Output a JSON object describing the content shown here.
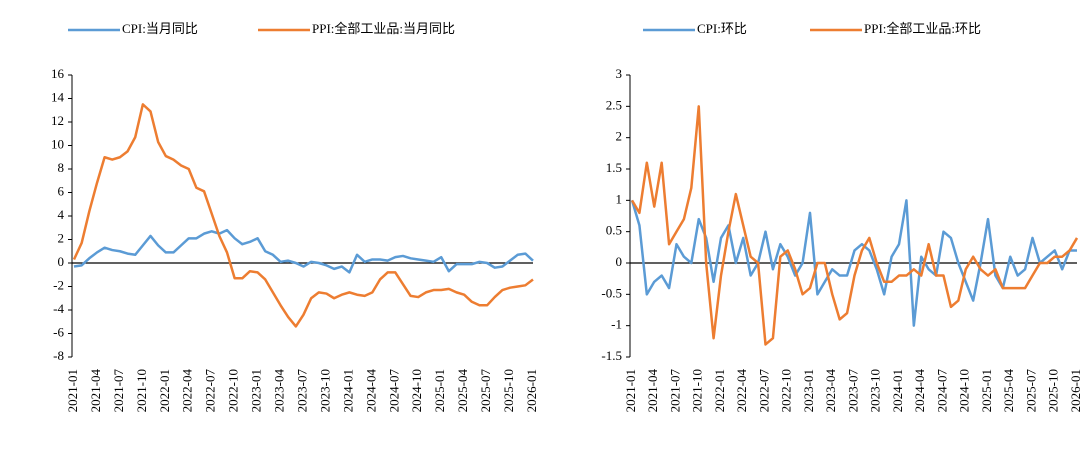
{
  "chart_data": [
    {
      "type": "line",
      "categories": [
        "2021-01",
        null,
        null,
        "2021-04",
        null,
        null,
        "2021-07",
        null,
        null,
        "2021-10",
        null,
        null,
        "2022-01",
        null,
        null,
        "2022-04",
        null,
        null,
        "2022-07",
        null,
        null,
        "2022-10",
        null,
        null,
        "2023-01",
        null,
        null,
        "2023-04",
        null,
        null,
        "2023-07",
        null,
        null,
        "2023-10",
        null,
        null,
        "2024-01",
        null,
        null,
        "2024-04",
        null,
        null,
        "2024-07",
        null,
        null,
        "2024-10",
        null,
        null,
        "2025-01",
        null,
        null,
        "2025-04",
        null,
        null,
        "2025-07",
        null,
        null,
        "2025-10",
        null,
        null,
        "2026-01"
      ],
      "series": [
        {
          "name": "CPI:当月同比",
          "color": "#5b9bd5",
          "values": [
            -0.3,
            -0.2,
            0.4,
            0.9,
            1.3,
            1.1,
            1.0,
            0.8,
            0.7,
            1.5,
            2.3,
            1.5,
            0.9,
            0.9,
            1.5,
            2.1,
            2.1,
            2.5,
            2.7,
            2.5,
            2.8,
            2.1,
            1.6,
            1.8,
            2.1,
            1.0,
            0.7,
            0.1,
            0.2,
            0.0,
            -0.3,
            0.1,
            0.0,
            -0.2,
            -0.5,
            -0.3,
            -0.8,
            0.7,
            0.1,
            0.3,
            0.3,
            0.2,
            0.5,
            0.6,
            0.4,
            0.3,
            0.2,
            0.1,
            0.5,
            -0.7,
            -0.1,
            -0.1,
            -0.1,
            0.1,
            0.0,
            -0.4,
            -0.3,
            0.2,
            0.7,
            0.8,
            0.2
          ]
        },
        {
          "name": "PPI:全部工业品:当月同比",
          "color": "#ed7d31",
          "values": [
            0.3,
            1.7,
            4.4,
            6.8,
            9.0,
            8.8,
            9.0,
            9.5,
            10.7,
            13.5,
            12.9,
            10.3,
            9.1,
            8.8,
            8.3,
            8.0,
            6.4,
            6.1,
            4.2,
            2.3,
            0.9,
            -1.3,
            -1.3,
            -0.7,
            -0.8,
            -1.4,
            -2.5,
            -3.6,
            -4.6,
            -5.4,
            -4.4,
            -3.0,
            -2.5,
            -2.6,
            -3.0,
            -2.7,
            -2.5,
            -2.7,
            -2.8,
            -2.5,
            -1.4,
            -0.8,
            -0.8,
            -1.8,
            -2.8,
            -2.9,
            -2.5,
            -2.3,
            -2.3,
            -2.2,
            -2.5,
            -2.7,
            -3.3,
            -3.6,
            -3.6,
            -2.9,
            -2.3,
            -2.1,
            -2.0,
            -1.9,
            -1.4
          ]
        }
      ],
      "ylim": [
        -8,
        16
      ],
      "yticks": [
        -8,
        -6,
        -4,
        -2,
        0,
        2,
        4,
        6,
        8,
        10,
        12,
        14,
        16
      ]
    },
    {
      "type": "line",
      "categories": [
        "2021-01",
        null,
        null,
        "2021-04",
        null,
        null,
        "2021-07",
        null,
        null,
        "2021-10",
        null,
        null,
        "2022-01",
        null,
        null,
        "2022-04",
        null,
        null,
        "2022-07",
        null,
        null,
        "2022-10",
        null,
        null,
        "2023-01",
        null,
        null,
        "2023-04",
        null,
        null,
        "2023-07",
        null,
        null,
        "2023-10",
        null,
        null,
        "2024-01",
        null,
        null,
        "2024-04",
        null,
        null,
        "2024-07",
        null,
        null,
        "2024-10",
        null,
        null,
        "2025-01",
        null,
        null,
        "2025-04",
        null,
        null,
        "2025-07",
        null,
        null,
        "2025-10",
        null,
        null,
        "2026-01"
      ],
      "series": [
        {
          "name": "CPI:环比",
          "color": "#5b9bd5",
          "values": [
            1.0,
            0.6,
            -0.5,
            -0.3,
            -0.2,
            -0.4,
            0.3,
            0.1,
            0.0,
            0.7,
            0.4,
            -0.3,
            0.4,
            0.6,
            0.0,
            0.4,
            -0.2,
            0.0,
            0.5,
            -0.1,
            0.3,
            0.1,
            -0.2,
            0.0,
            0.8,
            -0.5,
            -0.3,
            -0.1,
            -0.2,
            -0.2,
            0.2,
            0.3,
            0.2,
            -0.1,
            -0.5,
            0.1,
            0.3,
            1.0,
            -1.0,
            0.1,
            -0.1,
            -0.2,
            0.5,
            0.4,
            0.0,
            -0.3,
            -0.6,
            0.0,
            0.7,
            -0.2,
            -0.4,
            0.1,
            -0.2,
            -0.1,
            0.4,
            0.0,
            0.1,
            0.2,
            -0.1,
            0.2,
            0.2
          ]
        },
        {
          "name": "PPI:全部工业品:环比",
          "color": "#ed7d31",
          "values": [
            1.0,
            0.8,
            1.6,
            0.9,
            1.6,
            0.3,
            0.5,
            0.7,
            1.2,
            2.5,
            0.0,
            -1.2,
            -0.2,
            0.5,
            1.1,
            0.6,
            0.1,
            0.0,
            -1.3,
            -1.2,
            0.1,
            0.2,
            -0.1,
            -0.5,
            -0.4,
            0.0,
            0.0,
            -0.5,
            -0.9,
            -0.8,
            -0.2,
            0.2,
            0.4,
            0.0,
            -0.3,
            -0.3,
            -0.2,
            -0.2,
            -0.1,
            -0.2,
            0.3,
            -0.2,
            -0.2,
            -0.7,
            -0.6,
            -0.1,
            0.1,
            -0.1,
            -0.2,
            -0.1,
            -0.4,
            -0.4,
            -0.4,
            -0.4,
            -0.2,
            0.0,
            0.0,
            0.1,
            0.1,
            0.2,
            0.4
          ]
        }
      ],
      "ylim": [
        -1.5,
        3
      ],
      "yticks": [
        -1.5,
        -1,
        -0.5,
        0,
        0.5,
        1,
        1.5,
        2,
        2.5,
        3
      ]
    }
  ]
}
